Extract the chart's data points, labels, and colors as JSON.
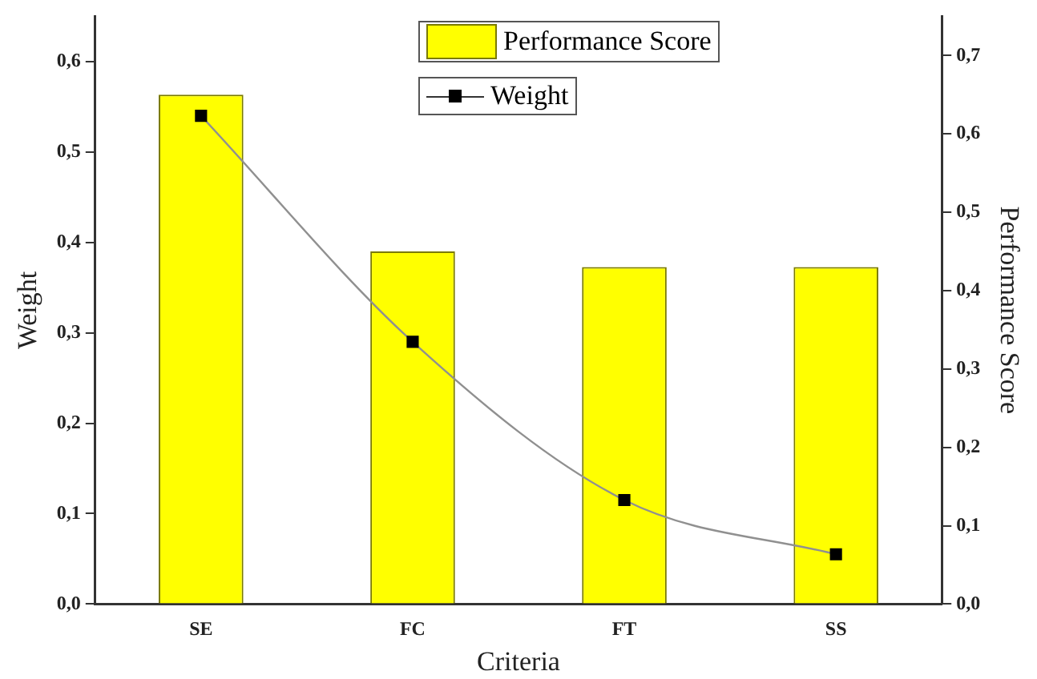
{
  "chart_data": {
    "type": "bar",
    "xlabel": "Criteria",
    "ylabel": "Weight",
    "y2label": "Performance Score",
    "categories": [
      "SE",
      "FC",
      "FT",
      "SS"
    ],
    "series": [
      {
        "name": "Performance Score",
        "axis": "y2",
        "color": "#ffff00",
        "values": [
          0.65,
          0.45,
          0.43,
          0.43
        ]
      },
      {
        "name": "Weight",
        "type": "line",
        "axis": "y",
        "color": "#000000",
        "values": [
          0.54,
          0.29,
          0.115,
          0.055
        ]
      }
    ],
    "ylim": [
      0,
      0.65
    ],
    "yticks": [
      {
        "value": 0,
        "label": "0,0"
      },
      {
        "value": 0.1,
        "label": "0,1"
      },
      {
        "value": 0.2,
        "label": "0,2"
      },
      {
        "value": 0.3,
        "label": "0,3"
      },
      {
        "value": 0.4,
        "label": "0,4"
      },
      {
        "value": 0.5,
        "label": "0,5"
      },
      {
        "value": 0.6,
        "label": "0,6"
      }
    ],
    "y2lim": [
      0,
      0.75
    ],
    "y2ticks": [
      {
        "value": 0,
        "label": "0,0"
      },
      {
        "value": 0.1,
        "label": "0,1"
      },
      {
        "value": 0.2,
        "label": "0,2"
      },
      {
        "value": 0.3,
        "label": "0,3"
      },
      {
        "value": 0.4,
        "label": "0,4"
      },
      {
        "value": 0.5,
        "label": "0,5"
      },
      {
        "value": 0.6,
        "label": "0,6"
      },
      {
        "value": 0.7,
        "label": "0,7"
      }
    ],
    "legend": "top",
    "marker": "square",
    "grid": false
  }
}
